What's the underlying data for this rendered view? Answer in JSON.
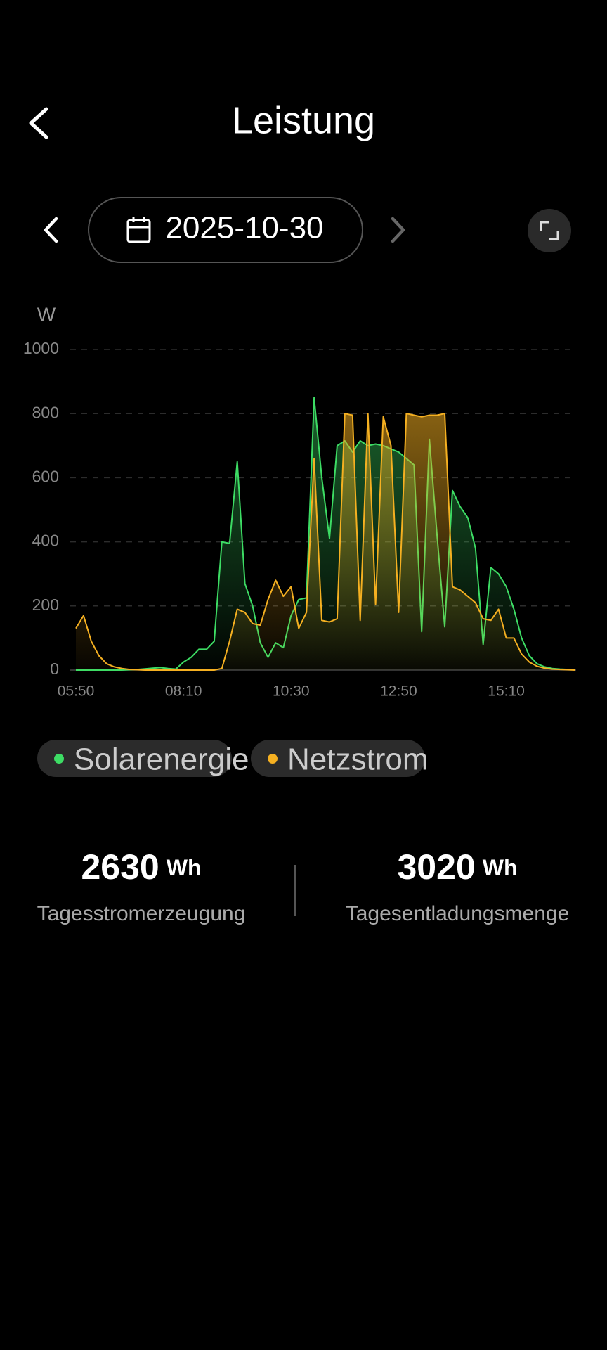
{
  "header": {
    "title": "Leistung"
  },
  "date": "2025-10-30",
  "chart_data": {
    "type": "line",
    "unit": "W",
    "categories": [
      "05:50",
      "06:00",
      "06:10",
      "06:20",
      "06:30",
      "06:40",
      "06:50",
      "07:00",
      "07:10",
      "07:20",
      "07:30",
      "07:40",
      "07:50",
      "08:00",
      "08:10",
      "08:20",
      "08:30",
      "08:40",
      "08:50",
      "09:00",
      "09:10",
      "09:20",
      "09:30",
      "09:40",
      "09:50",
      "10:00",
      "10:10",
      "10:20",
      "10:30",
      "10:40",
      "10:50",
      "11:00",
      "11:10",
      "11:20",
      "11:30",
      "11:40",
      "11:50",
      "12:00",
      "12:10",
      "12:20",
      "12:30",
      "12:40",
      "12:50",
      "13:00",
      "13:10",
      "13:20",
      "13:30",
      "13:40",
      "13:50",
      "14:00",
      "14:10",
      "14:20",
      "14:30",
      "14:40",
      "14:50",
      "15:00",
      "15:10",
      "15:20",
      "15:30",
      "15:40",
      "15:50",
      "16:00",
      "16:10",
      "16:20",
      "16:30",
      "16:40"
    ],
    "xticks": [
      "05:50",
      "08:10",
      "10:30",
      "12:50",
      "15:10"
    ],
    "ylim": [
      0,
      1000
    ],
    "yticks": [
      0,
      200,
      400,
      600,
      800,
      1000
    ],
    "grid": true,
    "series": [
      {
        "name": "Solarenergie",
        "color": "#3ddc64",
        "values": [
          0,
          0,
          0,
          0,
          0,
          0,
          0,
          1,
          2,
          4,
          6,
          8,
          5,
          3,
          25,
          40,
          65,
          65,
          90,
          400,
          395,
          650,
          270,
          200,
          85,
          40,
          85,
          70,
          170,
          220,
          225,
          850,
          600,
          410,
          700,
          715,
          680,
          715,
          700,
          705,
          700,
          690,
          680,
          660,
          640,
          120,
          720,
          420,
          135,
          560,
          510,
          475,
          380,
          80,
          320,
          300,
          260,
          190,
          100,
          45,
          20,
          10,
          5,
          3,
          2,
          1
        ]
      },
      {
        "name": "Netzstrom",
        "color": "#f5b021",
        "values": [
          130,
          170,
          90,
          45,
          20,
          10,
          5,
          2,
          1,
          0,
          0,
          0,
          0,
          0,
          0,
          0,
          0,
          0,
          0,
          5,
          90,
          190,
          180,
          145,
          140,
          220,
          280,
          230,
          260,
          130,
          180,
          660,
          155,
          150,
          160,
          800,
          795,
          155,
          800,
          205,
          790,
          700,
          180,
          800,
          795,
          790,
          795,
          795,
          800,
          260,
          250,
          230,
          210,
          160,
          155,
          190,
          100,
          100,
          50,
          25,
          12,
          6,
          3,
          2,
          1,
          0
        ]
      }
    ]
  },
  "stats": [
    {
      "value": 2630,
      "unit": "Wh",
      "label": "Tagesstromerzeugung"
    },
    {
      "value": 3020,
      "unit": "Wh",
      "label": "Tagesentladungsmenge"
    }
  ]
}
